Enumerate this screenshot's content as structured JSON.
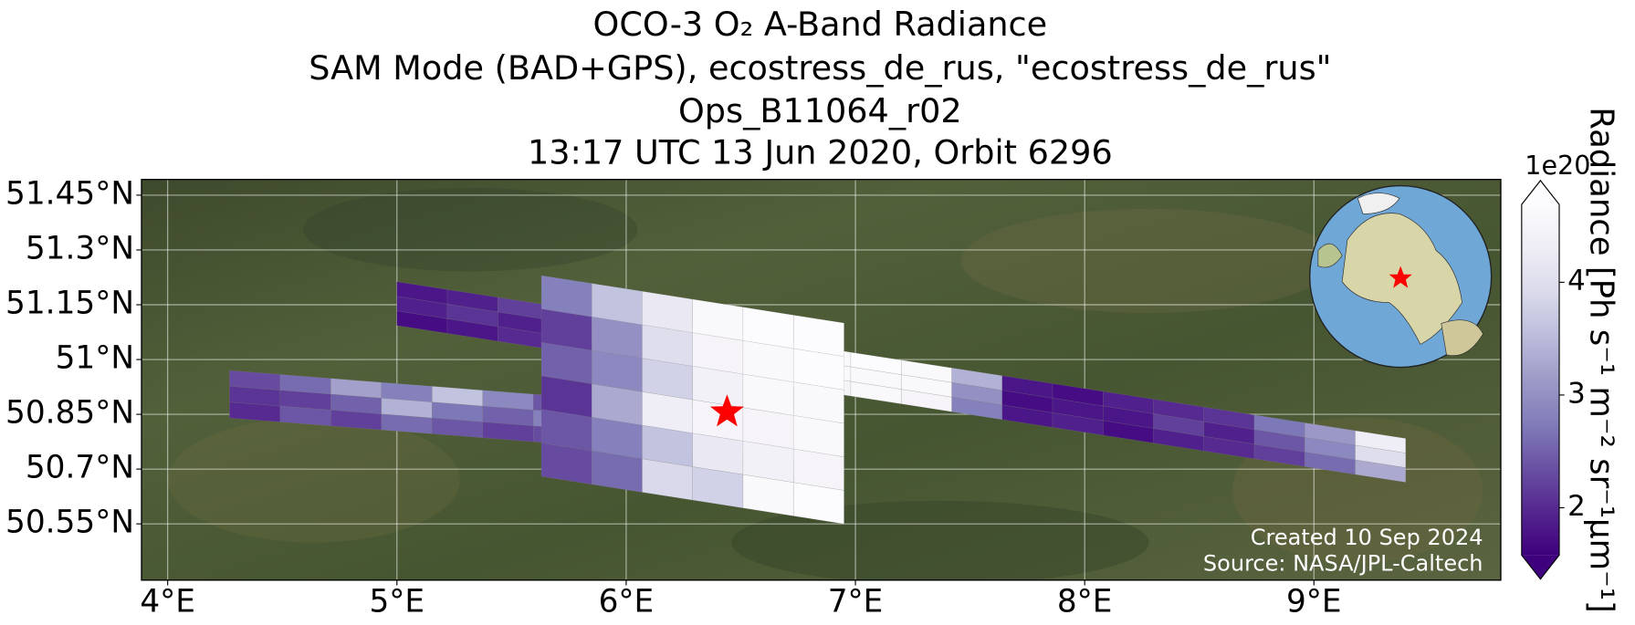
{
  "chart_data": {
    "type": "map",
    "title": [
      "OCO-3 O₂ A-Band Radiance",
      "SAM Mode (BAD+GPS), ecostress_de_rus, \"ecostress_de_rus\"",
      "Ops_B11064_r02",
      "13:17 UTC 13 Jun 2020, Orbit 6296"
    ],
    "xlim": [
      3.886,
      9.815
    ],
    "ylim": [
      50.396,
      51.493
    ],
    "xticks": [
      {
        "value": 4,
        "label": "4°E"
      },
      {
        "value": 5,
        "label": "5°E"
      },
      {
        "value": 6,
        "label": "6°E"
      },
      {
        "value": 7,
        "label": "7°E"
      },
      {
        "value": 8,
        "label": "8°E"
      },
      {
        "value": 9,
        "label": "9°E"
      }
    ],
    "yticks": [
      {
        "value": 50.55,
        "label": "50.55°N"
      },
      {
        "value": 50.7,
        "label": "50.7°N"
      },
      {
        "value": 50.85,
        "label": "50.85°N"
      },
      {
        "value": 51,
        "label": "51°N"
      },
      {
        "value": 51.15,
        "label": "51.15°N"
      },
      {
        "value": 51.3,
        "label": "51.3°N"
      },
      {
        "value": 51.45,
        "label": "51.45°N"
      }
    ],
    "grid": true,
    "swaths": [
      {
        "start": [
          5.0,
          51.213
        ],
        "end": [
          9.4,
          50.784
        ],
        "width": 0.12,
        "values": [
          [
            1.8,
            1.9,
            1.7
          ],
          [
            1.9,
            2.1,
            1.8
          ],
          [
            2.2,
            1.9,
            2.0
          ],
          [
            2.6,
            2.3,
            2.1
          ],
          [
            3.4,
            2.8,
            2.5
          ],
          [
            4.1,
            3.6,
            3.2
          ],
          [
            4.5,
            4.3,
            4.0
          ],
          [
            4.6,
            4.5,
            4.4
          ],
          [
            4.6,
            4.6,
            4.5
          ],
          [
            4.7,
            4.6,
            4.6
          ],
          [
            4.6,
            4.6,
            4.5
          ],
          [
            3.4,
            3.0,
            2.8
          ],
          [
            1.8,
            1.7,
            1.8
          ],
          [
            1.7,
            1.8,
            1.9
          ],
          [
            1.9,
            1.8,
            1.7
          ],
          [
            2.0,
            2.2,
            1.9
          ],
          [
            2.1,
            1.9,
            2.0
          ],
          [
            2.7,
            2.4,
            2.2
          ],
          [
            3.1,
            2.9,
            2.6
          ],
          [
            4.3,
            4.0,
            3.3
          ]
        ]
      },
      {
        "start": [
          4.27,
          50.97
        ],
        "end": [
          6.92,
          50.84
        ],
        "width": 0.13,
        "values": [
          [
            2.3,
            2.1,
            2.0
          ],
          [
            2.6,
            2.2,
            2.4
          ],
          [
            3.2,
            2.5,
            2.2
          ],
          [
            2.8,
            3.4,
            2.6
          ],
          [
            3.6,
            2.7,
            2.4
          ],
          [
            2.9,
            2.5,
            2.2
          ],
          [
            2.4,
            2.8,
            2.3
          ],
          [
            2.7,
            2.3,
            2.5
          ],
          [
            3.0,
            2.6,
            2.8
          ],
          [
            3.5,
            3.1,
            3.3
          ],
          [
            4.2,
            3.9,
            3.8
          ],
          [
            4.5,
            4.3,
            4.4
          ]
        ]
      },
      {
        "start": [
          5.63,
          51.23
        ],
        "end": [
          6.95,
          51.1
        ],
        "width": 0.55,
        "values": [
          [
            2.8,
            2.2,
            2.5,
            2.1,
            2.4,
            2.3
          ],
          [
            3.6,
            3.0,
            2.9,
            3.3,
            2.8,
            2.6
          ],
          [
            4.2,
            4.0,
            3.8,
            4.3,
            3.6,
            3.9
          ],
          [
            4.6,
            4.5,
            4.4,
            4.5,
            4.2,
            3.8
          ],
          [
            4.7,
            4.6,
            4.6,
            4.5,
            4.4,
            4.6
          ],
          [
            4.7,
            4.7,
            4.6,
            4.6,
            4.5,
            4.7
          ]
        ]
      }
    ],
    "target": {
      "lon": 6.44,
      "lat": 50.856,
      "color": "#ff0000"
    },
    "colorbar": {
      "label": "Radiance [Ph s⁻¹ m⁻² sr⁻¹μm⁻¹]",
      "lim": [
        1.58,
        4.69
      ],
      "ticks": [
        2,
        3,
        4
      ],
      "offset_label": "1e20",
      "colormap": "Purples",
      "extend": "both"
    },
    "annotations": [
      "Created 10 Sep 2024",
      "Source: NASA/JPL-Caltech"
    ]
  }
}
